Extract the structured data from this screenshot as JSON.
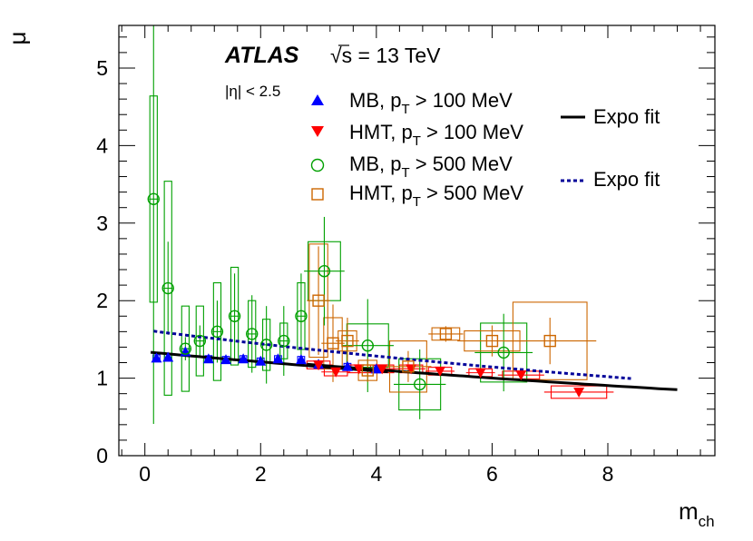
{
  "chart_data": {
    "type": "scatter",
    "xlabel": "m",
    "xlabel_sub": "ch",
    "ylabel": "μ",
    "xlim": [
      -0.45,
      9.85
    ],
    "ylim": [
      0,
      5.55
    ],
    "xticks": [
      0,
      2,
      4,
      6,
      8
    ],
    "yticks": [
      0,
      1,
      2,
      3,
      4,
      5
    ],
    "annotation": {
      "experiment": "ATLAS",
      "energy_sqrt": "√s",
      "energy_rest": " = 13 TeV",
      "eta": "|η| < 2.5"
    },
    "legend": [
      {
        "label_pre": "MB, p",
        "sub": "T",
        "label_post": " > 100 MeV",
        "series": 0
      },
      {
        "label_pre": "HMT, p",
        "sub": "T",
        "label_post": " > 100 MeV",
        "series": 1
      },
      {
        "label_pre": "MB, p",
        "sub": "T",
        "label_post": " > 500 MeV",
        "series": 2
      },
      {
        "label_pre": "HMT, p",
        "sub": "T",
        "label_post": " > 500 MeV",
        "series": 3
      }
    ],
    "fit_legend": [
      {
        "label": "Expo fit",
        "style": "solid"
      },
      {
        "label": "Expo fit",
        "style": "dashed"
      }
    ],
    "series": [
      {
        "name": "MB, pT > 100 MeV",
        "color": "#0000ff",
        "marker": "triangle-up",
        "points": [
          {
            "x": 0.2,
            "y": 1.26,
            "xerr": 0.05,
            "yerr": 0.02,
            "sys": 0.04
          },
          {
            "x": 0.4,
            "y": 1.27,
            "xerr": 0.05,
            "yerr": 0.02,
            "sys": 0.04
          },
          {
            "x": 0.7,
            "y": 1.34,
            "xerr": 0.05,
            "yerr": 0.02,
            "sys": 0.04
          },
          {
            "x": 1.1,
            "y": 1.25,
            "xerr": 0.05,
            "yerr": 0.02,
            "sys": 0.04
          },
          {
            "x": 1.4,
            "y": 1.24,
            "xerr": 0.05,
            "yerr": 0.02,
            "sys": 0.04
          },
          {
            "x": 1.7,
            "y": 1.25,
            "xerr": 0.05,
            "yerr": 0.02,
            "sys": 0.04
          },
          {
            "x": 2.0,
            "y": 1.22,
            "xerr": 0.05,
            "yerr": 0.02,
            "sys": 0.04
          },
          {
            "x": 2.3,
            "y": 1.25,
            "xerr": 0.05,
            "yerr": 0.02,
            "sys": 0.04
          },
          {
            "x": 2.7,
            "y": 1.24,
            "xerr": 0.05,
            "yerr": 0.02,
            "sys": 0.04
          },
          {
            "x": 3.0,
            "y": 1.18,
            "xerr": 0.05,
            "yerr": 0.02,
            "sys": 0.04
          },
          {
            "x": 3.5,
            "y": 1.15,
            "xerr": 0.05,
            "yerr": 0.02,
            "sys": 0.04
          },
          {
            "x": 4.0,
            "y": 1.12,
            "xerr": 0.05,
            "yerr": 0.02,
            "sys": 0.04
          }
        ],
        "fit": {
          "a": 1.34,
          "b": -0.051,
          "x0": 0.1,
          "x1": 4.2,
          "style": "solid"
        }
      },
      {
        "name": "HMT, pT > 100 MeV",
        "color": "#ff0000",
        "marker": "triangle-down",
        "points": [
          {
            "x": 3.0,
            "y": 1.17,
            "xerr": 0.25,
            "yerr": 0.02,
            "sys": 0.05
          },
          {
            "x": 3.3,
            "y": 1.08,
            "xerr": 0.25,
            "yerr": 0.02,
            "sys": 0.05
          },
          {
            "x": 3.7,
            "y": 1.12,
            "xerr": 0.25,
            "yerr": 0.02,
            "sys": 0.05
          },
          {
            "x": 4.1,
            "y": 1.12,
            "xerr": 0.25,
            "yerr": 0.02,
            "sys": 0.05
          },
          {
            "x": 4.6,
            "y": 1.12,
            "xerr": 0.25,
            "yerr": 0.02,
            "sys": 0.05
          },
          {
            "x": 5.1,
            "y": 1.09,
            "xerr": 0.25,
            "yerr": 0.02,
            "sys": 0.05
          },
          {
            "x": 5.8,
            "y": 1.07,
            "xerr": 0.25,
            "yerr": 0.02,
            "sys": 0.05
          },
          {
            "x": 6.5,
            "y": 1.04,
            "xerr": 0.4,
            "yerr": 0.02,
            "sys": 0.05
          },
          {
            "x": 7.5,
            "y": 0.82,
            "xerr": 0.6,
            "yerr": 0.02,
            "sys": 0.08
          }
        ],
        "fit": {
          "a": 1.36,
          "b": -0.051,
          "x0": 2.8,
          "x1": 9.2,
          "style": "solid"
        }
      },
      {
        "name": "MB, pT > 500 MeV",
        "color": "#00a000",
        "marker": "circle-open",
        "points": [
          {
            "x": 0.15,
            "y": 3.31,
            "xerr": 0.08,
            "yerr": 2.9,
            "sys": 1.33
          },
          {
            "x": 0.4,
            "y": 2.16,
            "xerr": 0.08,
            "yerr": 0.6,
            "sys": 1.38
          },
          {
            "x": 0.7,
            "y": 1.38,
            "xerr": 0.08,
            "yerr": 0.15,
            "sys": 0.55
          },
          {
            "x": 0.95,
            "y": 1.48,
            "xerr": 0.08,
            "yerr": 0.2,
            "sys": 0.45
          },
          {
            "x": 1.25,
            "y": 1.6,
            "xerr": 0.08,
            "yerr": 0.4,
            "sys": 0.63
          },
          {
            "x": 1.55,
            "y": 1.8,
            "xerr": 0.08,
            "yerr": 0.55,
            "sys": 0.63
          },
          {
            "x": 1.85,
            "y": 1.57,
            "xerr": 0.08,
            "yerr": 0.5,
            "sys": 0.43
          },
          {
            "x": 2.1,
            "y": 1.43,
            "xerr": 0.08,
            "yerr": 0.5,
            "sys": 0.33
          },
          {
            "x": 2.4,
            "y": 1.48,
            "xerr": 0.08,
            "yerr": 0.45,
            "sys": 0.23
          },
          {
            "x": 2.7,
            "y": 1.8,
            "xerr": 0.08,
            "yerr": 0.55,
            "sys": 0.43
          },
          {
            "x": 3.1,
            "y": 2.38,
            "xerr": 0.35,
            "yerr": 0.7,
            "sys": 0.38
          },
          {
            "x": 3.85,
            "y": 1.42,
            "xerr": 0.45,
            "yerr": 0.6,
            "sys": 0.28
          },
          {
            "x": 4.75,
            "y": 0.92,
            "xerr": 0.45,
            "yerr": 0.45,
            "sys": 0.33
          },
          {
            "x": 6.2,
            "y": 1.33,
            "xerr": 0.5,
            "yerr": 0.5,
            "sys": 0.38
          }
        ]
      },
      {
        "name": "HMT, pT > 500 MeV",
        "color": "#cc6600",
        "marker": "square-open",
        "points": [
          {
            "x": 3.0,
            "y": 2.0,
            "xerr": 0.2,
            "yerr": 0.7,
            "sys": 0.73
          },
          {
            "x": 3.25,
            "y": 1.45,
            "xerr": 0.2,
            "yerr": 0.5,
            "sys": 0.33
          },
          {
            "x": 3.5,
            "y": 1.48,
            "xerr": 0.2,
            "yerr": 0.3,
            "sys": 0.13
          },
          {
            "x": 3.85,
            "y": 1.1,
            "xerr": 0.2,
            "yerr": 0.15,
            "sys": 0.13
          },
          {
            "x": 4.55,
            "y": 1.15,
            "xerr": 0.4,
            "yerr": 0.2,
            "sys": 0.33
          },
          {
            "x": 5.2,
            "y": 1.57,
            "xerr": 0.3,
            "yerr": 0.1,
            "sys": 0.08
          },
          {
            "x": 6.0,
            "y": 1.48,
            "xerr": 0.6,
            "yerr": 0.2,
            "sys": 0.13
          },
          {
            "x": 7.0,
            "y": 1.48,
            "xerr": 0.8,
            "yerr": 0.3,
            "sys": 0.5
          }
        ],
        "fit": {
          "a": 1.62,
          "b": -0.058,
          "x0": 0.15,
          "x1": 8.4,
          "style": "dashed"
        }
      }
    ]
  }
}
